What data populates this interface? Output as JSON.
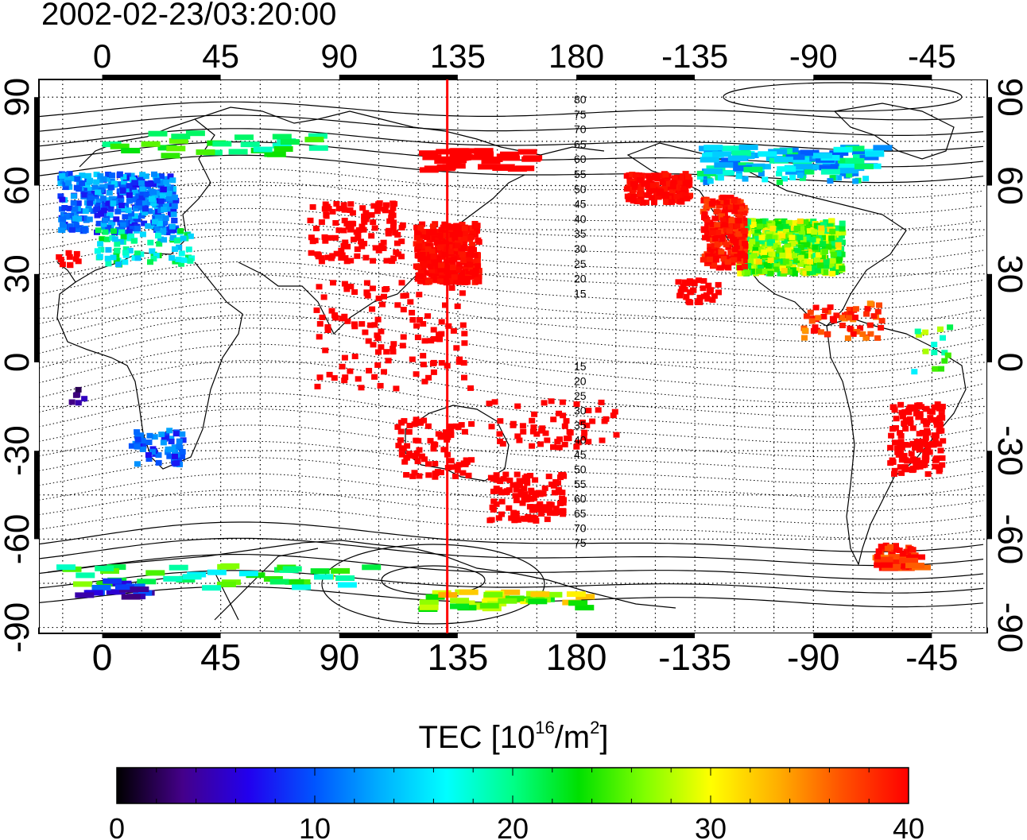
{
  "title": "2002-02-23/03:20:00",
  "map": {
    "longitude_ticks": [
      "0",
      "45",
      "90",
      "135",
      "180",
      "-135",
      "-90",
      "-45"
    ],
    "latitude_ticks": [
      "90",
      "60",
      "30",
      "0",
      "-30",
      "-60",
      "-90"
    ],
    "northern_contour_labels": [
      "80",
      "75",
      "70",
      "65",
      "60",
      "55",
      "50",
      "45",
      "40",
      "35",
      "30",
      "25",
      "20",
      "15"
    ],
    "southern_contour_labels": [
      "15",
      "20",
      "25",
      "30",
      "35",
      "40",
      "45",
      "50",
      "55",
      "60",
      "65",
      "70",
      "75"
    ],
    "marker_longitude": 131,
    "marker_color": "#ff0000"
  },
  "colorbar": {
    "title_main": "TEC  [10",
    "title_exp1": "16",
    "title_mid": "/m",
    "title_exp2": "2",
    "title_end": "]",
    "ticks": [
      "0",
      "10",
      "20",
      "30",
      "40"
    ],
    "range": [
      0,
      40
    ],
    "colors": [
      "#000000",
      "#44008a",
      "#2200ee",
      "#0055ff",
      "#00b0ff",
      "#00ffff",
      "#00ff88",
      "#00e000",
      "#80ff00",
      "#ffff00",
      "#ffb000",
      "#ff5000",
      "#ff0000"
    ]
  }
}
